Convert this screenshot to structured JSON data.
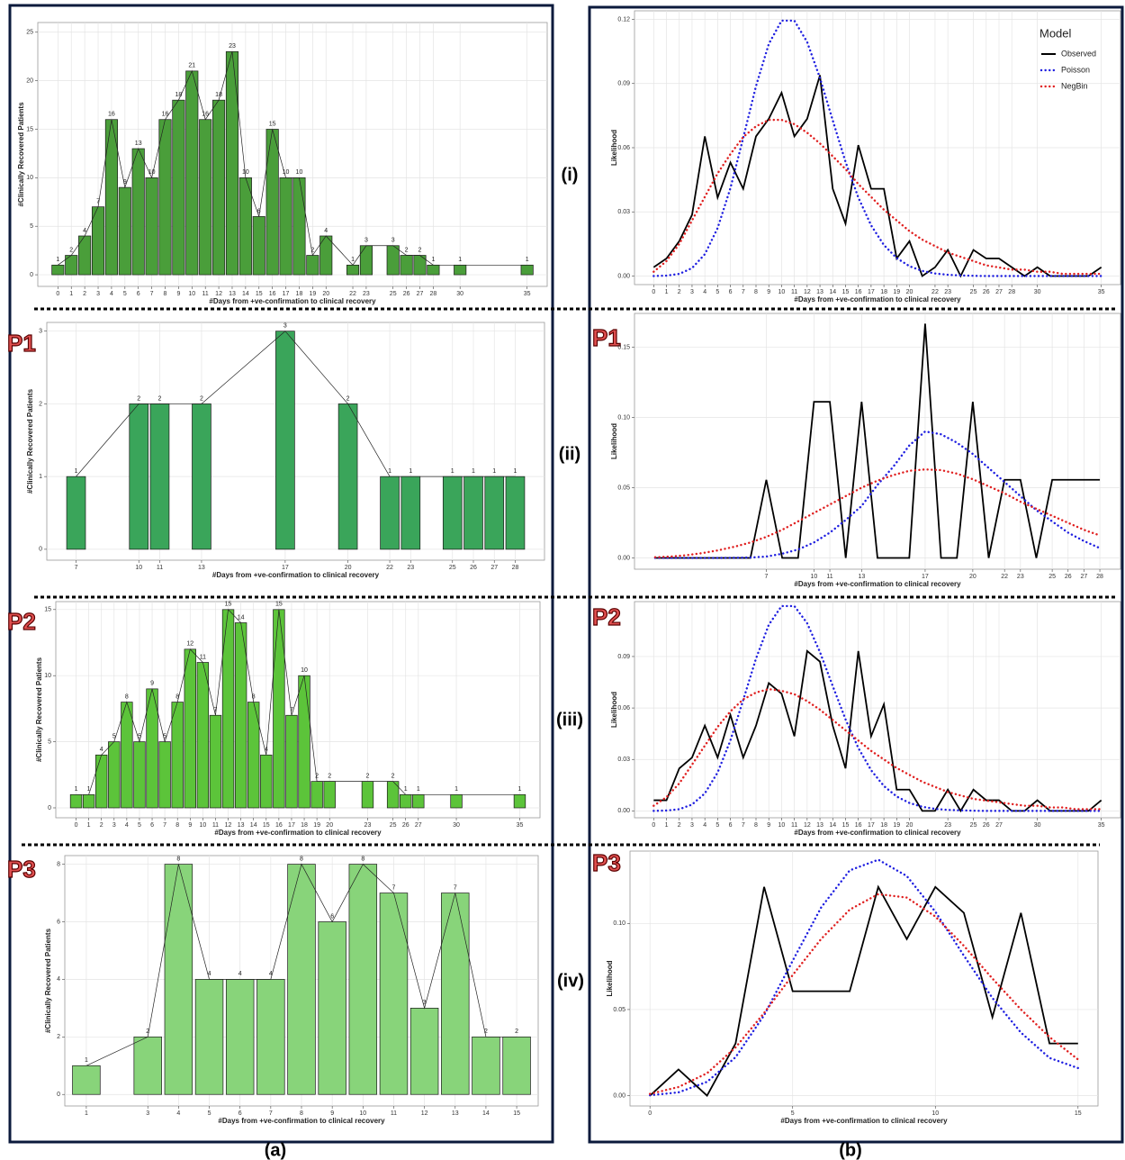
{
  "labels": {
    "panels": [
      "(a)",
      "(b)"
    ],
    "rows": [
      "(i)",
      "(ii)",
      "(iii)",
      "(iv)"
    ],
    "groups": [
      "P1",
      "P2",
      "P3"
    ]
  },
  "chart_data": [
    {
      "type": "bar",
      "x_label": "#Days from +ve-confirmation to clinical recovery",
      "y_label": "#Clinically Recovered Patients",
      "color": "#4a9e3a",
      "grid": true,
      "x": [
        0,
        1,
        2,
        3,
        4,
        5,
        6,
        7,
        8,
        9,
        10,
        11,
        12,
        13,
        14,
        15,
        16,
        17,
        18,
        19,
        20,
        22,
        23,
        25,
        26,
        27,
        28,
        30,
        35
      ],
      "values": [
        1,
        2,
        4,
        7,
        16,
        9,
        13,
        10,
        16,
        18,
        21,
        16,
        18,
        23,
        10,
        6,
        15,
        10,
        10,
        2,
        4,
        1,
        3,
        3,
        2,
        2,
        1,
        1,
        1
      ],
      "xlim": [
        -1.5,
        36.5
      ],
      "xticks": [
        0,
        1,
        2,
        3,
        4,
        5,
        6,
        7,
        8,
        9,
        10,
        11,
        12,
        13,
        14,
        15,
        16,
        17,
        18,
        19,
        20,
        22,
        23,
        25,
        26,
        27,
        28,
        30,
        35
      ],
      "ylim": [
        -1.2,
        26
      ],
      "yticks": [
        0,
        5,
        10,
        15,
        20,
        25
      ]
    },
    {
      "type": "bar",
      "x_label": "#Days from +ve-confirmation to clinical recovery",
      "y_label": "#Clinically Recovered Patients",
      "color": "#3aa55a",
      "grid": true,
      "x": [
        7,
        10,
        11,
        13,
        17,
        20,
        22,
        23,
        25,
        26,
        27,
        28
      ],
      "values": [
        1,
        2,
        2,
        2,
        3,
        2,
        1,
        1,
        1,
        1,
        1,
        1
      ],
      "xlim": [
        5.6,
        29.4
      ],
      "xticks": [
        7,
        10,
        11,
        13,
        17,
        20,
        22,
        23,
        25,
        26,
        27,
        28
      ],
      "ylim": [
        -0.15,
        3.12
      ],
      "yticks": [
        0,
        1,
        2,
        3
      ]
    },
    {
      "type": "bar",
      "x_label": "#Days from +ve-confirmation to clinical recovery",
      "y_label": "#Clinically Recovered Patients",
      "color": "#5cc43a",
      "grid": true,
      "x": [
        0,
        1,
        2,
        3,
        4,
        5,
        6,
        7,
        8,
        9,
        10,
        11,
        12,
        13,
        14,
        15,
        16,
        17,
        18,
        19,
        20,
        23,
        25,
        26,
        27,
        30,
        35
      ],
      "values": [
        1,
        1,
        4,
        5,
        8,
        5,
        9,
        5,
        8,
        12,
        11,
        7,
        15,
        14,
        8,
        4,
        15,
        7,
        10,
        2,
        2,
        2,
        2,
        1,
        1,
        1,
        1
      ],
      "xlim": [
        -1.6,
        36.6
      ],
      "xticks": [
        0,
        1,
        2,
        3,
        4,
        5,
        6,
        7,
        8,
        9,
        10,
        11,
        12,
        13,
        14,
        15,
        16,
        17,
        18,
        19,
        20,
        23,
        25,
        26,
        27,
        30,
        35
      ],
      "ylim": [
        -0.75,
        15.6
      ],
      "yticks": [
        0,
        5,
        10,
        15
      ]
    },
    {
      "type": "bar",
      "x_label": "#Days from +ve-confirmation to clinical recovery",
      "y_label": "#Clinically Recovered Patients",
      "color": "#88d47a",
      "grid": true,
      "x": [
        1,
        3,
        4,
        5,
        6,
        7,
        8,
        9,
        10,
        11,
        12,
        13,
        14,
        15
      ],
      "values": [
        1,
        2,
        8,
        4,
        4,
        4,
        8,
        6,
        8,
        7,
        3,
        7,
        2,
        2
      ],
      "xlim": [
        0.3,
        15.7
      ],
      "xticks": [
        1,
        3,
        4,
        5,
        6,
        7,
        8,
        9,
        10,
        11,
        12,
        13,
        14,
        15
      ],
      "ylim": [
        -0.4,
        8.3
      ],
      "yticks": [
        0,
        2,
        4,
        6,
        8
      ]
    },
    {
      "type": "line",
      "x_label": "#Days from +ve-confirmation to clinical recovery",
      "y_label": "Likelihood",
      "grid": true,
      "legend": "top-right",
      "legend_title": "Model",
      "x": [
        0,
        1,
        2,
        3,
        4,
        5,
        6,
        7,
        8,
        9,
        10,
        11,
        12,
        13,
        14,
        15,
        16,
        17,
        18,
        19,
        20,
        21,
        22,
        23,
        24,
        25,
        26,
        27,
        28,
        29,
        30,
        31,
        32,
        33,
        34,
        35
      ],
      "series": [
        {
          "name": "Observed",
          "color": "#000000",
          "style": "solid",
          "values": [
            0.0041,
            0.0082,
            0.0163,
            0.0286,
            0.0653,
            0.0367,
            0.0531,
            0.0408,
            0.0653,
            0.0735,
            0.0857,
            0.0653,
            0.0735,
            0.0939,
            0.0408,
            0.0245,
            0.0612,
            0.0408,
            0.0408,
            0.0082,
            0.0163,
            0,
            0.0041,
            0.0122,
            0,
            0.0122,
            0.0082,
            0.0082,
            0.0041,
            0,
            0.0041,
            0,
            0,
            0,
            0,
            0.0041
          ]
        },
        {
          "name": "Poisson",
          "color": "#1f1fe0",
          "style": "dotted",
          "values": [
            0,
            0.0002,
            0.001,
            0.0037,
            0.0102,
            0.0224,
            0.0411,
            0.0646,
            0.0888,
            0.1085,
            0.1194,
            0.1194,
            0.1094,
            0.0926,
            0.0728,
            0.0534,
            0.0367,
            0.0237,
            0.0145,
            0.0084,
            0.0046,
            0.0024,
            0.0012,
            0.0006,
            0.0003,
            0.0001,
            0,
            0,
            0,
            0,
            0,
            0,
            0,
            0,
            0,
            0
          ]
        },
        {
          "name": "NegBin",
          "color": "#e02020",
          "style": "dotted",
          "values": [
            0.002,
            0.007,
            0.015,
            0.026,
            0.037,
            0.048,
            0.057,
            0.065,
            0.07,
            0.073,
            0.073,
            0.071,
            0.067,
            0.062,
            0.056,
            0.05,
            0.043,
            0.037,
            0.031,
            0.026,
            0.021,
            0.017,
            0.014,
            0.011,
            0.009,
            0.007,
            0.005,
            0.004,
            0.003,
            0.003,
            0.002,
            0.002,
            0.001,
            0.001,
            0.001,
            0.001
          ]
        }
      ],
      "xlim": [
        -1.5,
        36.5
      ],
      "xticks": [
        0,
        1,
        2,
        3,
        4,
        5,
        6,
        7,
        8,
        9,
        10,
        11,
        12,
        13,
        14,
        15,
        16,
        17,
        18,
        19,
        20,
        22,
        23,
        25,
        26,
        27,
        28,
        30,
        35
      ],
      "ylim": [
        -0.004,
        0.124
      ],
      "yticks": [
        {
          "value": 0,
          "label": "0.00"
        },
        {
          "value": 0.03,
          "label": "0.03"
        },
        {
          "value": 0.06,
          "label": "0.06"
        },
        {
          "value": 0.09,
          "label": "0.09"
        },
        {
          "value": 0.12,
          "label": "0.12"
        }
      ]
    },
    {
      "type": "line",
      "x_label": "#Days from +ve-confirmation to clinical recovery",
      "y_label": "Likelihood",
      "grid": true,
      "x": [
        0,
        1,
        2,
        3,
        4,
        5,
        6,
        7,
        8,
        9,
        10,
        11,
        12,
        13,
        14,
        15,
        16,
        17,
        18,
        19,
        20,
        21,
        22,
        23,
        24,
        25,
        26,
        27,
        28
      ],
      "series": [
        {
          "color": "#000000",
          "style": "solid",
          "values": [
            0,
            0,
            0,
            0,
            0,
            0,
            0,
            0.0556,
            0,
            0,
            0.1111,
            0.1111,
            0,
            0.1111,
            0,
            0,
            0,
            0.1667,
            0,
            0,
            0.1111,
            0,
            0.0556,
            0.0556,
            0,
            0.0556,
            0.0556,
            0.0556,
            0.0556
          ]
        },
        {
          "color": "#1f1fe0",
          "style": "dotted",
          "values": [
            0,
            0,
            0,
            0,
            0,
            0.0001,
            0.0003,
            0.001,
            0.003,
            0.006,
            0.011,
            0.018,
            0.027,
            0.037,
            0.052,
            0.065,
            0.08,
            0.09,
            0.088,
            0.082,
            0.074,
            0.064,
            0.054,
            0.044,
            0.034,
            0.026,
            0.018,
            0.012,
            0.007
          ]
        },
        {
          "color": "#e02020",
          "style": "dotted",
          "values": [
            0.0005,
            0.001,
            0.002,
            0.0035,
            0.0055,
            0.008,
            0.011,
            0.015,
            0.02,
            0.026,
            0.032,
            0.038,
            0.044,
            0.05,
            0.055,
            0.059,
            0.062,
            0.063,
            0.0625,
            0.06,
            0.056,
            0.051,
            0.046,
            0.04,
            0.035,
            0.03,
            0.025,
            0.02,
            0.016
          ]
        }
      ],
      "xlim": [
        -1.3,
        29.3
      ],
      "xticks": [
        7,
        10,
        11,
        13,
        17,
        20,
        22,
        23,
        25,
        26,
        27,
        28
      ],
      "ylim": [
        -0.008,
        0.174
      ],
      "yticks": [
        {
          "value": 0,
          "label": "0.00"
        },
        {
          "value": 0.05,
          "label": "0.05"
        },
        {
          "value": 0.1,
          "label": "0.10"
        },
        {
          "value": 0.15,
          "label": "0.15"
        }
      ]
    },
    {
      "type": "line",
      "x_label": "#Days from +ve-confirmation to clinical recovery",
      "y_label": "Likelihood",
      "grid": true,
      "x": [
        0,
        1,
        2,
        3,
        4,
        5,
        6,
        7,
        8,
        9,
        10,
        11,
        12,
        13,
        14,
        15,
        16,
        17,
        18,
        19,
        20,
        21,
        22,
        23,
        24,
        25,
        26,
        27,
        28,
        29,
        30,
        31,
        32,
        33,
        34,
        35
      ],
      "series": [
        {
          "color": "#000000",
          "style": "solid",
          "values": [
            0.0062,
            0.0062,
            0.0248,
            0.0311,
            0.0497,
            0.0311,
            0.0559,
            0.0311,
            0.0497,
            0.0745,
            0.0683,
            0.0435,
            0.0932,
            0.087,
            0.0497,
            0.0248,
            0.0932,
            0.0435,
            0.0621,
            0.0124,
            0.0124,
            0,
            0,
            0.0124,
            0,
            0.0124,
            0.0062,
            0.0062,
            0,
            0,
            0.0062,
            0,
            0,
            0,
            0,
            0.0062
          ]
        },
        {
          "color": "#1f1fe0",
          "style": "dotted",
          "values": [
            0,
            0.0002,
            0.001,
            0.0037,
            0.0102,
            0.0224,
            0.0411,
            0.0646,
            0.0888,
            0.1085,
            0.1194,
            0.1194,
            0.1094,
            0.0926,
            0.0728,
            0.0534,
            0.0367,
            0.0237,
            0.0145,
            0.0084,
            0.0046,
            0.0024,
            0.0012,
            0.0006,
            0.0003,
            0.0001,
            0,
            0,
            0,
            0,
            0,
            0,
            0,
            0,
            0,
            0
          ]
        },
        {
          "color": "#e02020",
          "style": "dotted",
          "values": [
            0.003,
            0.008,
            0.016,
            0.027,
            0.038,
            0.049,
            0.058,
            0.065,
            0.069,
            0.071,
            0.07,
            0.068,
            0.064,
            0.059,
            0.053,
            0.047,
            0.041,
            0.035,
            0.03,
            0.025,
            0.021,
            0.017,
            0.014,
            0.011,
            0.009,
            0.007,
            0.006,
            0.005,
            0.004,
            0.003,
            0.003,
            0.002,
            0.002,
            0.001,
            0.001,
            0.001
          ]
        }
      ],
      "xlim": [
        -1.5,
        36.5
      ],
      "xticks": [
        0,
        1,
        2,
        3,
        4,
        5,
        6,
        7,
        8,
        9,
        10,
        11,
        12,
        13,
        14,
        15,
        16,
        17,
        18,
        19,
        20,
        23,
        25,
        26,
        27,
        30,
        35
      ],
      "ylim": [
        -0.004,
        0.122
      ],
      "yticks": [
        {
          "value": 0,
          "label": "0.00"
        },
        {
          "value": 0.03,
          "label": "0.03"
        },
        {
          "value": 0.06,
          "label": "0.06"
        },
        {
          "value": 0.09,
          "label": "0.09"
        }
      ]
    },
    {
      "type": "line",
      "x_label": "#Days from +ve-confirmation to clinical recovery",
      "y_label": "Likelihood",
      "grid": true,
      "x": [
        0,
        1,
        2,
        3,
        4,
        5,
        6,
        7,
        8,
        9,
        10,
        11,
        12,
        13,
        14,
        15
      ],
      "series": [
        {
          "color": "#000000",
          "style": "solid",
          "values": [
            0,
            0.0152,
            0,
            0.0303,
            0.1212,
            0.0606,
            0.0606,
            0.0606,
            0.1212,
            0.0909,
            0.1212,
            0.1061,
            0.0455,
            0.1061,
            0.0303,
            0.0303
          ]
        },
        {
          "color": "#1f1fe0",
          "style": "dotted",
          "values": [
            0.0002,
            0.0019,
            0.008,
            0.0223,
            0.0467,
            0.0783,
            0.1093,
            0.1308,
            0.137,
            0.1275,
            0.1068,
            0.0813,
            0.0567,
            0.0366,
            0.0219,
            0.016
          ]
        },
        {
          "color": "#e02020",
          "style": "dotted",
          "values": [
            0.001,
            0.005,
            0.013,
            0.028,
            0.048,
            0.07,
            0.091,
            0.108,
            0.117,
            0.115,
            0.104,
            0.087,
            0.068,
            0.05,
            0.034,
            0.021
          ]
        }
      ],
      "xlim": [
        -0.7,
        15.7
      ],
      "xticks": [
        0,
        5,
        10,
        15
      ],
      "ylim": [
        -0.006,
        0.142
      ],
      "yticks": [
        {
          "value": 0,
          "label": "0.00"
        },
        {
          "value": 0.05,
          "label": "0.05"
        },
        {
          "value": 0.1,
          "label": "0.10"
        }
      ]
    }
  ]
}
